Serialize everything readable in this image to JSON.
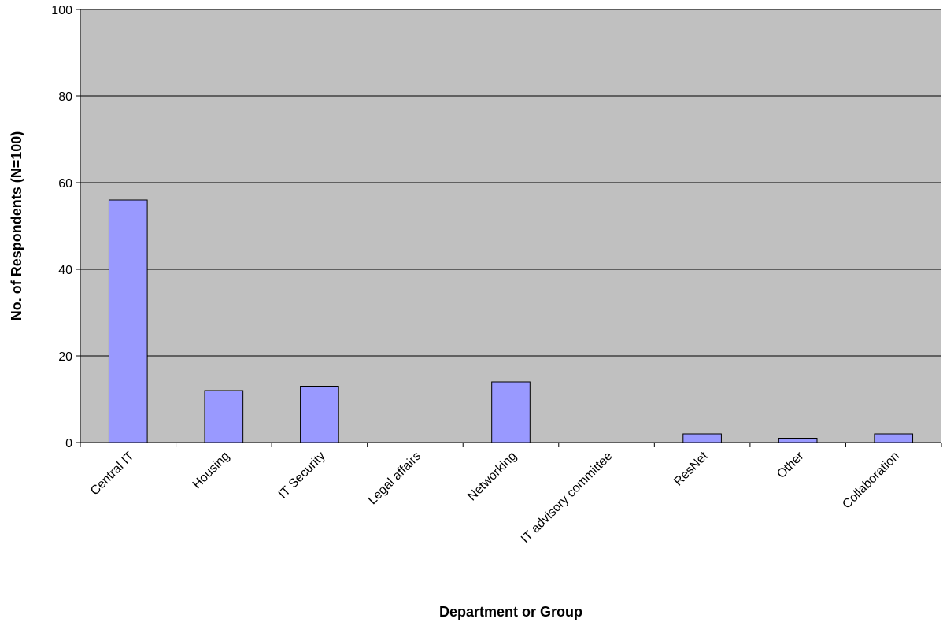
{
  "colors": {
    "plot_background": "#c0c0c0",
    "bar_fill": "#9999ff",
    "bar_stroke": "#000000",
    "gridline": "#000000"
  },
  "chart_data": {
    "type": "bar",
    "title": "",
    "xlabel": "Department or Group",
    "ylabel": "No. of Respondents (N=100)",
    "ylim": [
      0,
      100
    ],
    "yticks": [
      0,
      20,
      40,
      60,
      80,
      100
    ],
    "grid": true,
    "categories": [
      "Central IT",
      "Housing",
      "IT Security",
      "Legal affairs",
      "Networking",
      "IT advisory committee",
      "ResNet",
      "Other",
      "Collaboration"
    ],
    "values": [
      56,
      12,
      13,
      0,
      14,
      0,
      2,
      1,
      2
    ]
  }
}
